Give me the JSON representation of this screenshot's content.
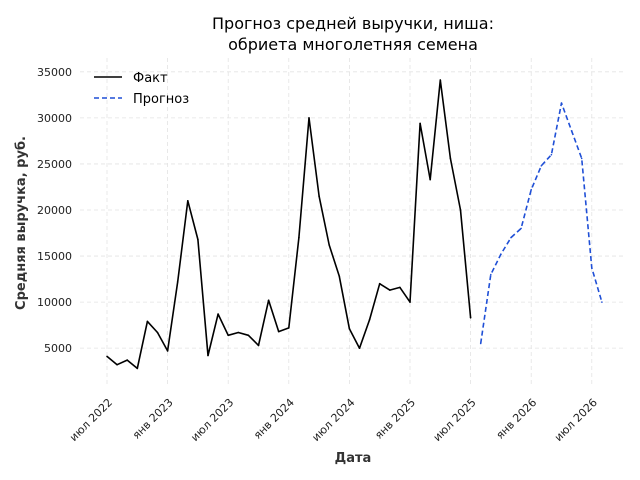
{
  "chart_data": {
    "type": "line",
    "title_line1": "Прогноз средней выручки, ниша:",
    "title_line2": "обриета многолетняя семена",
    "xlabel": "Дата",
    "ylabel": "Средняя выручка, руб.",
    "ylim": [
      1000,
      36500
    ],
    "yticks": [
      5000,
      10000,
      15000,
      20000,
      25000,
      30000,
      35000
    ],
    "xticks": [
      {
        "date": "2022-07",
        "label": "июл 2022"
      },
      {
        "date": "2023-01",
        "label": "янв 2023"
      },
      {
        "date": "2023-07",
        "label": "июл 2023"
      },
      {
        "date": "2024-01",
        "label": "янв 2024"
      },
      {
        "date": "2024-07",
        "label": "июл 2024"
      },
      {
        "date": "2025-01",
        "label": "янв 2025"
      },
      {
        "date": "2025-07",
        "label": "июл 2025"
      },
      {
        "date": "2026-01",
        "label": "янв 2026"
      },
      {
        "date": "2026-07",
        "label": "июл 2026"
      }
    ],
    "grid": true,
    "legend_position": "top-left",
    "series": [
      {
        "name": "Факт",
        "color": "#000000",
        "style": "solid",
        "x": [
          "2022-07",
          "2022-08",
          "2022-09",
          "2022-10",
          "2022-11",
          "2022-12",
          "2023-01",
          "2023-02",
          "2023-03",
          "2023-04",
          "2023-05",
          "2023-06",
          "2023-07",
          "2023-08",
          "2023-09",
          "2023-10",
          "2023-11",
          "2023-12",
          "2024-01",
          "2024-02",
          "2024-03",
          "2024-04",
          "2024-05",
          "2024-06",
          "2024-07",
          "2024-08",
          "2024-09",
          "2024-10",
          "2024-11",
          "2024-12",
          "2025-01",
          "2025-02",
          "2025-03",
          "2025-04",
          "2025-05",
          "2025-06",
          "2025-07"
        ],
        "y": [
          4100,
          3200,
          3700,
          2800,
          7900,
          6700,
          4700,
          12200,
          21000,
          16800,
          4200,
          8700,
          6400,
          6700,
          6400,
          5300,
          10200,
          6800,
          7200,
          17000,
          30000,
          21500,
          16200,
          12800,
          7100,
          5000,
          8100,
          12000,
          11300,
          11600,
          10000,
          29400,
          23300,
          34100,
          25600,
          20000,
          8300
        ]
      },
      {
        "name": "Прогноз",
        "color": "#1f4fd6",
        "style": "dashed",
        "x": [
          "2025-08",
          "2025-09",
          "2025-10",
          "2025-11",
          "2025-12",
          "2026-01",
          "2026-02",
          "2026-03",
          "2026-04",
          "2026-05",
          "2026-06",
          "2026-07",
          "2026-08"
        ],
        "y": [
          5500,
          13000,
          15200,
          17000,
          18000,
          22200,
          24800,
          26000,
          31600,
          28600,
          25600,
          13700,
          10000
        ]
      }
    ]
  }
}
